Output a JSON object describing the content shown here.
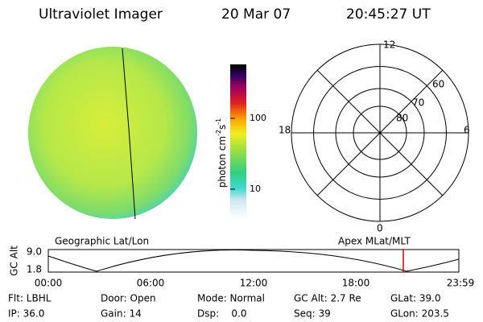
{
  "header": {
    "title": "Ultraviolet Imager",
    "date": "20 Mar 07",
    "time": "20:45:27 UT"
  },
  "colorbar": {
    "label": [
      "photon cm",
      "-2",
      "s",
      "-1"
    ],
    "ticks": [
      "100",
      "10"
    ]
  },
  "polar": {
    "mlt_labels": [
      "12",
      "18",
      "6",
      "0"
    ],
    "lat_labels": [
      "60",
      "70",
      "80"
    ]
  },
  "altitude_plot": {
    "left_title": "Geographic Lat/Lon",
    "right_title": "Apex MLat/MLT",
    "y_label": "GC Alt",
    "y_ticks": [
      "9.0",
      "1.8"
    ],
    "x_ticks": [
      "00:00",
      "06:00",
      "12:00",
      "18:00",
      "23:59"
    ]
  },
  "info": {
    "rows": [
      [
        "Flt: LBHL",
        "Door: Open",
        "Mode: Normal",
        "GC Alt: 2.7 Re",
        "GLat: 39.0"
      ],
      [
        "IP: 36.0",
        "Gain: 14",
        "Dsp:    0.0",
        "Seq: 39",
        "GLon: 203.5"
      ]
    ]
  }
}
